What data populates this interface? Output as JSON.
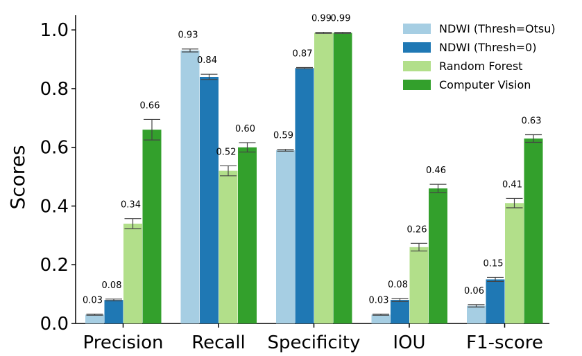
{
  "chart_data": {
    "type": "bar",
    "categories": [
      "Precision",
      "Recall",
      "Specificity",
      "IOU",
      "F1-score"
    ],
    "ylabel": "Scores",
    "xlabel": "",
    "ylim": [
      0,
      1.05
    ],
    "yticks": [
      "0.0",
      "0.2",
      "0.4",
      "0.6",
      "0.8",
      "1.0"
    ],
    "grid": false,
    "legend_position": "top-right",
    "series": [
      {
        "name": "NDWI (Thresh=Otsu)",
        "color": "#a6cee3",
        "values": [
          0.03,
          0.93,
          0.59,
          0.03,
          0.06
        ],
        "errors": [
          0.002,
          0.005,
          0.003,
          0.002,
          0.004
        ],
        "labels": [
          "0.03",
          "0.93",
          "0.59",
          "0.03",
          "0.06"
        ]
      },
      {
        "name": "NDWI (Thresh=0)",
        "color": "#1f78b4",
        "values": [
          0.08,
          0.84,
          0.87,
          0.08,
          0.15
        ],
        "errors": [
          0.003,
          0.009,
          0.002,
          0.005,
          0.007
        ],
        "labels": [
          "0.08",
          "0.84",
          "0.87",
          "0.08",
          "0.15"
        ]
      },
      {
        "name": "Random Forest",
        "color": "#b2df8a",
        "values": [
          0.34,
          0.52,
          0.99,
          0.26,
          0.41
        ],
        "errors": [
          0.017,
          0.017,
          0.002,
          0.013,
          0.016
        ],
        "labels": [
          "0.34",
          "0.52",
          "0.99",
          "0.26",
          "0.41"
        ]
      },
      {
        "name": "Computer Vision",
        "color": "#33a02c",
        "values": [
          0.66,
          0.6,
          0.99,
          0.46,
          0.63
        ],
        "errors": [
          0.035,
          0.016,
          0.002,
          0.014,
          0.013
        ],
        "labels": [
          "0.66",
          "0.60",
          "0.99",
          "0.46",
          "0.63"
        ]
      }
    ]
  }
}
